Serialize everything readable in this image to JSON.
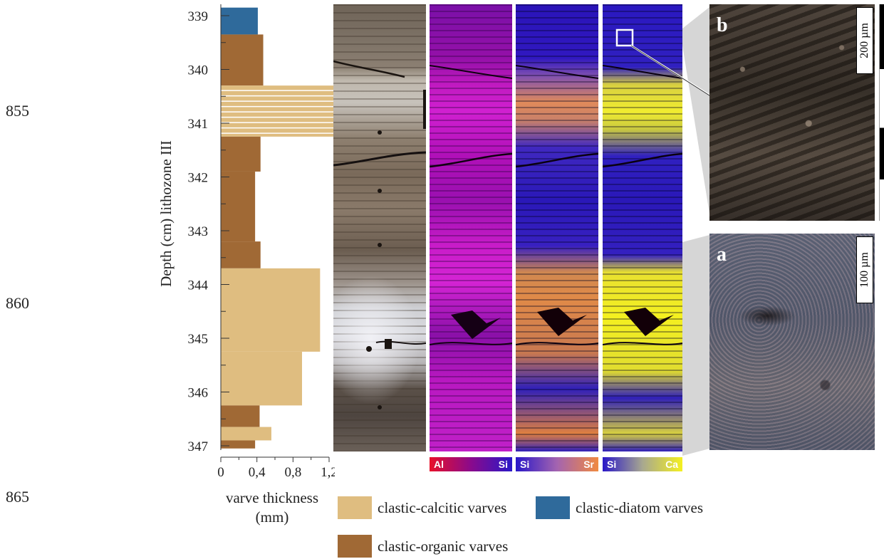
{
  "side_labels": [
    "855",
    "860",
    "865"
  ],
  "chart_data": {
    "type": "bar",
    "orientation": "horizontal",
    "ylabel": "Depth (cm) lithozone III",
    "xlabel": "varve thickness\n(mm)",
    "y_ticks": [
      "339",
      "340",
      "341",
      "342",
      "343",
      "344",
      "345",
      "346",
      "347"
    ],
    "x_ticks": [
      "0",
      "0,4",
      "0,8",
      "1,2"
    ],
    "xlim": [
      0,
      1.2
    ],
    "ylim": [
      338.8,
      347.05
    ],
    "colors": {
      "calcitic": "#dfbd80",
      "diatom": "#2f6a9b",
      "organic": "#a06935"
    },
    "segments": [
      {
        "type": "diatom",
        "top": 338.85,
        "bottom": 339.35,
        "value": 0.41
      },
      {
        "type": "organic",
        "top": 339.35,
        "bottom": 340.3,
        "value": 0.47
      },
      {
        "type": "calcitic",
        "top": 340.3,
        "bottom": 341.25,
        "value": 1.25,
        "striped": true
      },
      {
        "type": "organic",
        "top": 341.25,
        "bottom": 341.9,
        "value": 0.44
      },
      {
        "type": "organic",
        "top": 341.9,
        "bottom": 343.2,
        "value": 0.38
      },
      {
        "type": "organic",
        "top": 343.2,
        "bottom": 343.7,
        "value": 0.44
      },
      {
        "type": "calcitic",
        "top": 343.7,
        "bottom": 345.25,
        "value": 1.1
      },
      {
        "type": "calcitic",
        "top": 345.25,
        "bottom": 346.25,
        "value": 0.9
      },
      {
        "type": "organic",
        "top": 346.25,
        "bottom": 346.65,
        "value": 0.43
      },
      {
        "type": "calcitic",
        "top": 346.65,
        "bottom": 346.9,
        "value": 0.56
      },
      {
        "type": "organic",
        "top": 346.9,
        "bottom": 347.05,
        "value": 0.38
      }
    ]
  },
  "legend": [
    {
      "label": "clastic-calcitic varves",
      "color": "#dfbd80"
    },
    {
      "label": "clastic-diatom varves",
      "color": "#2f6a9b"
    },
    {
      "label": "clastic-organic varves",
      "color": "#a06935"
    }
  ],
  "color_bars": [
    {
      "left": "Al",
      "right": "Si",
      "gradient": [
        "#e8102a",
        "#8a0a8c",
        "#2a18c8"
      ]
    },
    {
      "left": "Si",
      "right": "Sr",
      "gradient": [
        "#2a18c8",
        "#a464b0",
        "#f08a40"
      ]
    },
    {
      "left": "Si",
      "right": "Ca",
      "gradient": [
        "#2a18c8",
        "#a8a890",
        "#f4f020"
      ]
    }
  ],
  "photos": {
    "b": {
      "letter": "b",
      "scale": "200 µm"
    },
    "a": {
      "letter": "a",
      "scale": "100 µm"
    }
  }
}
